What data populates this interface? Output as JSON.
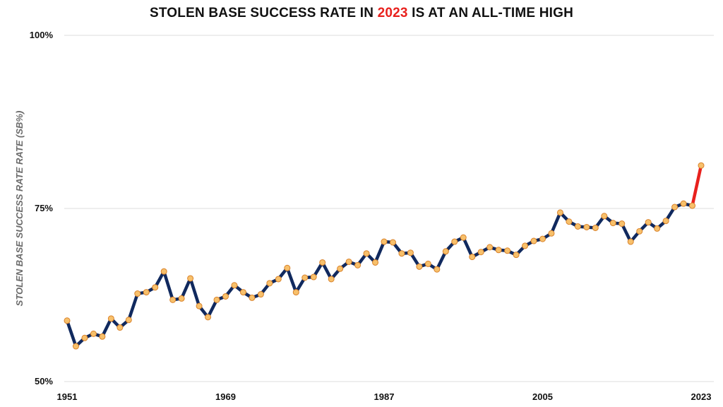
{
  "title": {
    "prefix": "STOLEN BASE SUCCESS RATE IN ",
    "highlight": "2023",
    "suffix": " IS AT AN ALL-TIME HIGH"
  },
  "colors": {
    "main_line": "#10295e",
    "highlight_line": "#e8211d",
    "marker_fill": "#f7c06b",
    "marker_stroke": "#d9822b",
    "grid": "#dedede"
  },
  "chart_data": {
    "type": "line",
    "title": "STOLEN BASE SUCCESS RATE IN 2023 IS AT AN ALL-TIME HIGH",
    "xlabel": "",
    "ylabel": "STOLEN BASE SUCCESS RATE RATE (SB%)",
    "ylim": [
      50,
      100
    ],
    "xlim": [
      1951,
      2023
    ],
    "x_ticks": [
      "1951",
      "1969",
      "1987",
      "2005",
      "2023"
    ],
    "y_ticks": [
      {
        "value": 50,
        "label": "50%"
      },
      {
        "value": 75,
        "label": "75%"
      },
      {
        "value": 100,
        "label": "100%"
      }
    ],
    "grid": "horizontal",
    "legend": "none",
    "highlight_segment": {
      "from": 2022,
      "to": 2023
    },
    "x": [
      1951,
      1952,
      1953,
      1954,
      1955,
      1956,
      1957,
      1958,
      1959,
      1960,
      1961,
      1962,
      1963,
      1964,
      1965,
      1966,
      1967,
      1968,
      1969,
      1970,
      1971,
      1972,
      1973,
      1974,
      1975,
      1976,
      1977,
      1978,
      1979,
      1980,
      1981,
      1982,
      1983,
      1984,
      1985,
      1986,
      1987,
      1988,
      1989,
      1990,
      1991,
      1992,
      1993,
      1994,
      1995,
      1996,
      1997,
      1998,
      1999,
      2000,
      2001,
      2002,
      2003,
      2004,
      2005,
      2006,
      2007,
      2008,
      2009,
      2010,
      2011,
      2012,
      2013,
      2014,
      2015,
      2016,
      2017,
      2018,
      2019,
      2020,
      2021,
      2022,
      2023
    ],
    "values": [
      58.8,
      55.1,
      56.3,
      56.9,
      56.5,
      59.1,
      57.8,
      58.9,
      62.7,
      62.9,
      63.6,
      65.9,
      61.8,
      62.0,
      64.9,
      60.9,
      59.3,
      61.8,
      62.3,
      63.9,
      62.9,
      62.1,
      62.6,
      64.2,
      64.8,
      66.4,
      62.9,
      65.0,
      65.1,
      67.2,
      64.8,
      66.3,
      67.3,
      66.8,
      68.5,
      67.2,
      70.2,
      70.1,
      68.5,
      68.6,
      66.6,
      67.0,
      66.2,
      68.8,
      70.2,
      70.8,
      68.0,
      68.7,
      69.4,
      69.0,
      68.9,
      68.3,
      69.6,
      70.3,
      70.6,
      71.4,
      74.4,
      73.1,
      72.4,
      72.3,
      72.2,
      73.9,
      72.9,
      72.8,
      70.2,
      71.7,
      73.0,
      72.1,
      73.2,
      75.2,
      75.7,
      75.4,
      81.2
    ]
  }
}
